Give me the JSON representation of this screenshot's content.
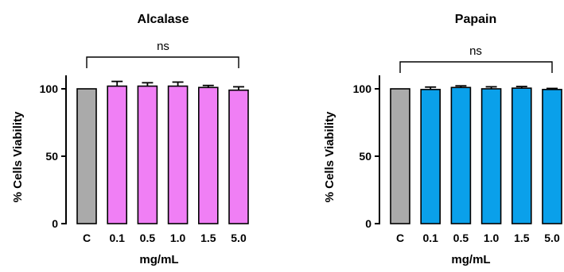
{
  "chart_data": [
    {
      "type": "bar",
      "title": "Alcalase",
      "xlabel": "mg/mL",
      "ylabel": "% Cells Viability",
      "categories": [
        "C",
        "0.1",
        "0.5",
        "1.0",
        "1.5",
        "5.0"
      ],
      "values": [
        100,
        102,
        102,
        102,
        101,
        99
      ],
      "errors": [
        0,
        3.5,
        2.5,
        3,
        1.5,
        2.5
      ],
      "bar_colors": [
        "#aaaaaa",
        "#f07ff5",
        "#f07ff5",
        "#f07ff5",
        "#f07ff5",
        "#f07ff5"
      ],
      "ylim": [
        0,
        110
      ],
      "yticks": [
        0,
        50,
        100
      ],
      "significance": {
        "label": "ns",
        "from": "C",
        "to": "5.0"
      }
    },
    {
      "type": "bar",
      "title": "Papain",
      "xlabel": "mg/mL",
      "ylabel": "% Cells Viability",
      "categories": [
        "C",
        "0.1",
        "0.5",
        "1.0",
        "1.5",
        "5.0"
      ],
      "values": [
        100,
        99.5,
        101,
        100,
        100.5,
        99.5
      ],
      "errors": [
        0,
        1.8,
        1.2,
        1.5,
        1.2,
        0.8
      ],
      "bar_colors": [
        "#aaaaaa",
        "#0aa0ea",
        "#0aa0ea",
        "#0aa0ea",
        "#0aa0ea",
        "#0aa0ea"
      ],
      "ylim": [
        0,
        110
      ],
      "yticks": [
        0,
        50,
        100
      ],
      "significance": {
        "label": "ns",
        "from": "C",
        "to": "5.0"
      }
    }
  ]
}
